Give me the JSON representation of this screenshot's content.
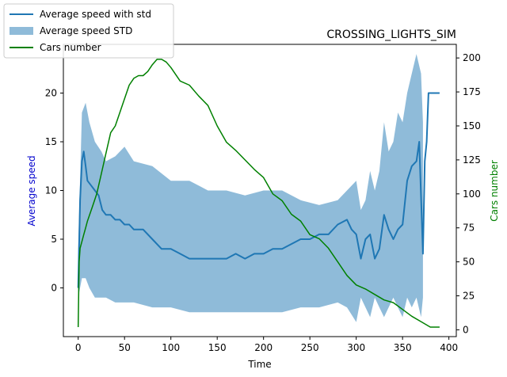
{
  "chart_data": {
    "type": "line",
    "title": "CROSSING_LIGHTS_SIM",
    "xlabel": "Time",
    "ylabel_left": "Average speed",
    "ylabel_right": "Cars number",
    "xlim": [
      -16,
      408
    ],
    "ylim_left": [
      -5,
      25
    ],
    "ylim_right": [
      -5,
      210
    ],
    "x_ticks": [
      0,
      50,
      100,
      150,
      200,
      250,
      300,
      350,
      400
    ],
    "y_ticks_left": [
      0,
      5,
      10,
      15,
      20
    ],
    "y_ticks_right": [
      0,
      25,
      50,
      75,
      100,
      125,
      150,
      175,
      200
    ],
    "colors": {
      "speed": "#1f77b4",
      "std_band": "#1f77b4",
      "cars": "#008000",
      "ylabel_left": "#0000cd",
      "ylabel_right": "#008000"
    },
    "legend": {
      "placement": "upper-left-outside",
      "entries": [
        "Average speed with std",
        "Average speed STD",
        "Cars number"
      ]
    },
    "series": [
      {
        "name": "Average speed with std",
        "axis": "left",
        "x": [
          0,
          2,
          4,
          6,
          8,
          10,
          14,
          18,
          22,
          26,
          30,
          35,
          40,
          45,
          50,
          55,
          60,
          70,
          80,
          90,
          100,
          110,
          120,
          130,
          140,
          150,
          160,
          170,
          180,
          190,
          200,
          210,
          220,
          230,
          240,
          250,
          260,
          270,
          280,
          290,
          295,
          300,
          305,
          310,
          315,
          320,
          325,
          330,
          335,
          340,
          345,
          350,
          355,
          360,
          365,
          368,
          372,
          374,
          376,
          378,
          380,
          382,
          390
        ],
        "y": [
          0,
          9,
          13,
          14,
          12.5,
          11,
          10.5,
          10,
          9.5,
          8,
          7.5,
          7.5,
          7,
          7,
          6.5,
          6.5,
          6,
          6,
          5,
          4,
          4,
          3.5,
          3,
          3,
          3,
          3,
          3,
          3.5,
          3,
          3.5,
          3.5,
          4,
          4,
          4.5,
          5,
          5,
          5.5,
          5.5,
          6.5,
          7,
          6,
          5.5,
          3,
          5,
          5.5,
          3,
          4,
          7.5,
          6,
          5,
          6,
          6.5,
          11,
          12.5,
          13,
          15,
          3.5,
          13,
          15,
          20,
          20,
          20,
          20
        ]
      },
      {
        "name": "Average speed STD",
        "axis": "left",
        "x": [
          0,
          4,
          8,
          12,
          18,
          25,
          30,
          40,
          50,
          60,
          80,
          100,
          120,
          140,
          160,
          180,
          200,
          220,
          240,
          260,
          280,
          290,
          300,
          305,
          310,
          315,
          320,
          325,
          330,
          335,
          340,
          345,
          350,
          355,
          360,
          365,
          370,
          372
        ],
        "upper": [
          4,
          18,
          19,
          17,
          15,
          14,
          13,
          13.5,
          14.5,
          13,
          12.5,
          11,
          11,
          10,
          10,
          9.5,
          10,
          10,
          9,
          8.5,
          9,
          10,
          11,
          8,
          9,
          12,
          10,
          12,
          17,
          14,
          15,
          18,
          17,
          20,
          22,
          24,
          22,
          17
        ],
        "lower": [
          -1,
          1,
          1,
          0,
          -1,
          -1,
          -1,
          -1.5,
          -1.5,
          -1.5,
          -2,
          -2,
          -2.5,
          -2.5,
          -2.5,
          -2.5,
          -2.5,
          -2.5,
          -2,
          -2,
          -1.5,
          -2,
          -3.5,
          -1,
          -2,
          -3,
          -1,
          -2,
          -3,
          -2,
          -1,
          -2,
          -3,
          -1,
          -2,
          -1,
          -3,
          -1
        ]
      },
      {
        "name": "Cars number",
        "axis": "right",
        "x": [
          0,
          1,
          2,
          4,
          6,
          8,
          10,
          15,
          20,
          25,
          30,
          35,
          40,
          45,
          50,
          55,
          60,
          65,
          70,
          75,
          80,
          85,
          90,
          95,
          100,
          110,
          120,
          130,
          140,
          150,
          160,
          170,
          180,
          190,
          200,
          210,
          220,
          230,
          240,
          250,
          260,
          270,
          280,
          290,
          300,
          310,
          320,
          330,
          340,
          350,
          360,
          370,
          380,
          390
        ],
        "y": [
          2,
          50,
          60,
          65,
          70,
          75,
          80,
          90,
          100,
          115,
          130,
          145,
          150,
          160,
          170,
          180,
          185,
          187,
          187,
          190,
          195,
          199,
          199,
          197,
          193,
          183,
          180,
          172,
          165,
          150,
          138,
          132,
          125,
          118,
          112,
          100,
          95,
          85,
          80,
          70,
          67,
          60,
          50,
          40,
          33,
          30,
          26,
          22,
          20,
          15,
          10,
          6,
          2,
          2
        ]
      }
    ]
  }
}
